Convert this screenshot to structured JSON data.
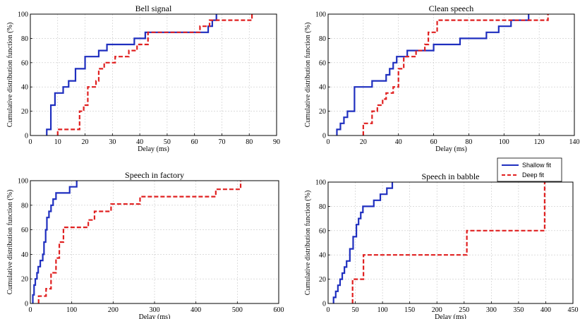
{
  "chart_data": [
    {
      "type": "line",
      "step": true,
      "title": "Bell signal",
      "xlabel": "Delay (ms)",
      "ylabel": "Cumulative distribution function (%)",
      "xlim": [
        0,
        90
      ],
      "ylim": [
        0,
        100
      ],
      "xticks": [
        "0",
        "10",
        "20",
        "30",
        "40",
        "50",
        "60",
        "70",
        "80",
        "90"
      ],
      "yticks": [
        "0",
        "20",
        "40",
        "60",
        "80",
        "100"
      ],
      "grid": true,
      "series": [
        {
          "name": "Shallow fit",
          "color": "#1f2fbf",
          "dash": false,
          "points": [
            [
              6,
              0
            ],
            [
              6,
              5
            ],
            [
              7.5,
              5
            ],
            [
              7.5,
              25
            ],
            [
              9,
              25
            ],
            [
              9,
              35
            ],
            [
              12,
              35
            ],
            [
              12,
              40
            ],
            [
              14,
              40
            ],
            [
              14,
              45
            ],
            [
              16.5,
              45
            ],
            [
              16.5,
              55
            ],
            [
              20,
              55
            ],
            [
              20,
              65
            ],
            [
              25,
              65
            ],
            [
              25,
              70
            ],
            [
              28,
              70
            ],
            [
              28,
              75
            ],
            [
              38,
              75
            ],
            [
              38,
              80
            ],
            [
              42,
              80
            ],
            [
              42,
              85
            ],
            [
              65,
              85
            ],
            [
              65,
              90
            ],
            [
              66.5,
              90
            ],
            [
              66.5,
              95
            ],
            [
              68,
              95
            ],
            [
              68,
              100
            ]
          ]
        },
        {
          "name": "Deep fit",
          "color": "#e02020",
          "dash": true,
          "points": [
            [
              10,
              0
            ],
            [
              10,
              5
            ],
            [
              18,
              5
            ],
            [
              18,
              20
            ],
            [
              19.5,
              20
            ],
            [
              19.5,
              25
            ],
            [
              21,
              25
            ],
            [
              21,
              40
            ],
            [
              24,
              40
            ],
            [
              24,
              45
            ],
            [
              25,
              45
            ],
            [
              25,
              55
            ],
            [
              27,
              55
            ],
            [
              27,
              60
            ],
            [
              31,
              60
            ],
            [
              31,
              65
            ],
            [
              36,
              65
            ],
            [
              36,
              70
            ],
            [
              39,
              70
            ],
            [
              39,
              75
            ],
            [
              43,
              75
            ],
            [
              43,
              85
            ],
            [
              62,
              85
            ],
            [
              62,
              90
            ],
            [
              65.5,
              90
            ],
            [
              65.5,
              95
            ],
            [
              81,
              95
            ],
            [
              81,
              100
            ]
          ]
        }
      ]
    },
    {
      "type": "line",
      "step": true,
      "title": "Clean speech",
      "xlabel": "Delay (ms)",
      "ylabel": "Cumulative distribution function (%)",
      "xlim": [
        0,
        140
      ],
      "ylim": [
        0,
        100
      ],
      "xticks": [
        "0",
        "20",
        "40",
        "60",
        "80",
        "100",
        "120",
        "140"
      ],
      "yticks": [
        "0",
        "20",
        "40",
        "60",
        "80",
        "100"
      ],
      "grid": true,
      "series": [
        {
          "name": "Shallow fit",
          "color": "#1f2fbf",
          "dash": false,
          "points": [
            [
              5,
              0
            ],
            [
              5,
              5
            ],
            [
              7,
              5
            ],
            [
              7,
              10
            ],
            [
              9,
              10
            ],
            [
              9,
              15
            ],
            [
              11,
              15
            ],
            [
              11,
              20
            ],
            [
              15,
              20
            ],
            [
              15,
              40
            ],
            [
              25,
              40
            ],
            [
              25,
              45
            ],
            [
              33,
              45
            ],
            [
              33,
              50
            ],
            [
              35,
              50
            ],
            [
              35,
              55
            ],
            [
              37,
              55
            ],
            [
              37,
              60
            ],
            [
              39,
              60
            ],
            [
              39,
              65
            ],
            [
              45,
              65
            ],
            [
              45,
              70
            ],
            [
              60,
              70
            ],
            [
              60,
              75
            ],
            [
              75,
              75
            ],
            [
              75,
              80
            ],
            [
              90,
              80
            ],
            [
              90,
              85
            ],
            [
              97,
              85
            ],
            [
              97,
              90
            ],
            [
              104,
              90
            ],
            [
              104,
              95
            ],
            [
              114,
              95
            ],
            [
              114,
              100
            ]
          ]
        },
        {
          "name": "Deep fit",
          "color": "#e02020",
          "dash": true,
          "points": [
            [
              20,
              0
            ],
            [
              20,
              10
            ],
            [
              25,
              10
            ],
            [
              25,
              20
            ],
            [
              28,
              20
            ],
            [
              28,
              25
            ],
            [
              31,
              25
            ],
            [
              31,
              30
            ],
            [
              33,
              30
            ],
            [
              33,
              35
            ],
            [
              37,
              35
            ],
            [
              37,
              40
            ],
            [
              40,
              40
            ],
            [
              40,
              55
            ],
            [
              43,
              55
            ],
            [
              43,
              65
            ],
            [
              50,
              65
            ],
            [
              50,
              70
            ],
            [
              55,
              70
            ],
            [
              55,
              75
            ],
            [
              57,
              75
            ],
            [
              57,
              85
            ],
            [
              62,
              85
            ],
            [
              62,
              95
            ],
            [
              125,
              95
            ],
            [
              125,
              100
            ]
          ]
        }
      ]
    },
    {
      "type": "line",
      "step": true,
      "title": "Speech in factory",
      "xlabel": "Delay (ms)",
      "ylabel": "Cumulative distribution function (%)",
      "xlim": [
        0,
        600
      ],
      "ylim": [
        0,
        100
      ],
      "xticks": [
        "0",
        "100",
        "200",
        "300",
        "400",
        "500",
        "600"
      ],
      "yticks": [
        "0",
        "20",
        "40",
        "60",
        "80",
        "100"
      ],
      "grid": true,
      "series": [
        {
          "name": "Shallow fit",
          "color": "#1f2fbf",
          "dash": false,
          "points": [
            [
              6,
              0
            ],
            [
              6,
              7
            ],
            [
              9,
              7
            ],
            [
              9,
              15
            ],
            [
              12,
              15
            ],
            [
              12,
              20
            ],
            [
              16,
              20
            ],
            [
              16,
              25
            ],
            [
              19,
              25
            ],
            [
              19,
              30
            ],
            [
              24,
              30
            ],
            [
              24,
              35
            ],
            [
              30,
              35
            ],
            [
              30,
              40
            ],
            [
              33,
              40
            ],
            [
              33,
              50
            ],
            [
              37,
              50
            ],
            [
              37,
              60
            ],
            [
              40,
              60
            ],
            [
              40,
              70
            ],
            [
              45,
              70
            ],
            [
              45,
              75
            ],
            [
              50,
              75
            ],
            [
              50,
              80
            ],
            [
              55,
              80
            ],
            [
              55,
              85
            ],
            [
              62,
              85
            ],
            [
              62,
              90
            ],
            [
              95,
              90
            ],
            [
              95,
              95
            ],
            [
              112,
              95
            ],
            [
              112,
              100
            ]
          ]
        },
        {
          "name": "Deep fit",
          "color": "#e02020",
          "dash": true,
          "points": [
            [
              20,
              0
            ],
            [
              20,
              6
            ],
            [
              38,
              6
            ],
            [
              38,
              12
            ],
            [
              50,
              12
            ],
            [
              50,
              25
            ],
            [
              62,
              25
            ],
            [
              62,
              37
            ],
            [
              70,
              37
            ],
            [
              70,
              50
            ],
            [
              80,
              50
            ],
            [
              80,
              62
            ],
            [
              140,
              62
            ],
            [
              140,
              68
            ],
            [
              155,
              68
            ],
            [
              155,
              75
            ],
            [
              195,
              75
            ],
            [
              195,
              81
            ],
            [
              265,
              81
            ],
            [
              265,
              87
            ],
            [
              448,
              87
            ],
            [
              448,
              93
            ],
            [
              508,
              93
            ],
            [
              508,
              100
            ]
          ]
        }
      ]
    },
    {
      "type": "line",
      "step": true,
      "title": "Speech in babble",
      "xlabel": "Delay (ms)",
      "ylabel": "Cumulative distribution function (%)",
      "xlim": [
        0,
        450
      ],
      "ylim": [
        0,
        100
      ],
      "xticks": [
        "0",
        "50",
        "100",
        "150",
        "200",
        "250",
        "300",
        "350",
        "400",
        "450"
      ],
      "yticks": [
        "0",
        "20",
        "40",
        "60",
        "80",
        "100"
      ],
      "grid": true,
      "series": [
        {
          "name": "Shallow fit",
          "color": "#1f2fbf",
          "dash": false,
          "points": [
            [
              10,
              0
            ],
            [
              10,
              5
            ],
            [
              14,
              5
            ],
            [
              14,
              10
            ],
            [
              18,
              10
            ],
            [
              18,
              15
            ],
            [
              22,
              15
            ],
            [
              22,
              20
            ],
            [
              26,
              20
            ],
            [
              26,
              25
            ],
            [
              30,
              25
            ],
            [
              30,
              30
            ],
            [
              34,
              30
            ],
            [
              34,
              35
            ],
            [
              40,
              35
            ],
            [
              40,
              45
            ],
            [
              46,
              45
            ],
            [
              46,
              55
            ],
            [
              52,
              55
            ],
            [
              52,
              65
            ],
            [
              56,
              65
            ],
            [
              56,
              70
            ],
            [
              60,
              70
            ],
            [
              60,
              75
            ],
            [
              64,
              75
            ],
            [
              64,
              80
            ],
            [
              84,
              80
            ],
            [
              84,
              85
            ],
            [
              96,
              85
            ],
            [
              96,
              90
            ],
            [
              108,
              90
            ],
            [
              108,
              95
            ],
            [
              118,
              95
            ],
            [
              118,
              100
            ]
          ]
        },
        {
          "name": "Deep fit",
          "color": "#e02020",
          "dash": true,
          "points": [
            [
              45,
              0
            ],
            [
              45,
              20
            ],
            [
              65,
              20
            ],
            [
              65,
              40
            ],
            [
              255,
              40
            ],
            [
              255,
              60
            ],
            [
              398,
              60
            ],
            [
              398,
              100
            ]
          ]
        }
      ]
    }
  ],
  "legend": {
    "placement": "between-right-panels",
    "items": [
      {
        "label": "Shallow fit",
        "color": "#1f2fbf",
        "dash": false
      },
      {
        "label": "Deep fit",
        "color": "#e02020",
        "dash": true
      }
    ]
  }
}
